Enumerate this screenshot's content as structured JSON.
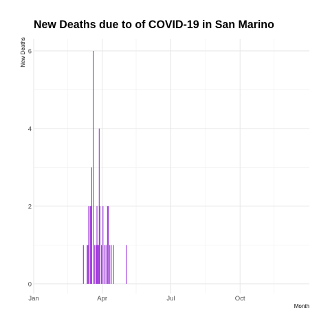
{
  "chart_data": {
    "type": "bar",
    "title": "New Deaths due to of COVID-19 in San Marino",
    "xlabel": "Month",
    "ylabel": "New Deaths",
    "x_axis": {
      "type": "date",
      "range": [
        "2020-01-01",
        "2020-12-31"
      ],
      "ticks": [
        {
          "date": "2020-01-01",
          "label": "Jan"
        },
        {
          "date": "2020-04-01",
          "label": "Apr"
        },
        {
          "date": "2020-07-01",
          "label": "Jul"
        },
        {
          "date": "2020-10-01",
          "label": "Oct"
        }
      ],
      "minor_ticks": [
        "2020-02-15",
        "2020-05-16",
        "2020-08-16",
        "2020-11-15"
      ]
    },
    "y_axis": {
      "range": [
        -0.25,
        6.3
      ],
      "ticks": [
        0,
        2,
        4,
        6
      ],
      "minor_ticks": [
        1,
        3,
        5
      ]
    },
    "grid": true,
    "legend": "none",
    "color": "#9b30d9",
    "points": [
      {
        "date": "2020-03-07",
        "value": 1
      },
      {
        "date": "2020-03-12",
        "value": 1
      },
      {
        "date": "2020-03-13",
        "value": 1
      },
      {
        "date": "2020-03-14",
        "value": 2
      },
      {
        "date": "2020-03-16",
        "value": 2
      },
      {
        "date": "2020-03-17",
        "value": 2
      },
      {
        "date": "2020-03-18",
        "value": 3
      },
      {
        "date": "2020-03-20",
        "value": 6
      },
      {
        "date": "2020-03-22",
        "value": 1
      },
      {
        "date": "2020-03-24",
        "value": 1
      },
      {
        "date": "2020-03-25",
        "value": 2
      },
      {
        "date": "2020-03-26",
        "value": 1
      },
      {
        "date": "2020-03-27",
        "value": 1
      },
      {
        "date": "2020-03-28",
        "value": 4
      },
      {
        "date": "2020-03-29",
        "value": 2
      },
      {
        "date": "2020-03-31",
        "value": 1
      },
      {
        "date": "2020-04-02",
        "value": 2
      },
      {
        "date": "2020-04-04",
        "value": 1
      },
      {
        "date": "2020-04-06",
        "value": 1
      },
      {
        "date": "2020-04-08",
        "value": 2
      },
      {
        "date": "2020-04-09",
        "value": 2
      },
      {
        "date": "2020-04-11",
        "value": 1
      },
      {
        "date": "2020-04-13",
        "value": 1
      },
      {
        "date": "2020-04-16",
        "value": 1
      },
      {
        "date": "2020-05-03",
        "value": 1
      }
    ]
  }
}
